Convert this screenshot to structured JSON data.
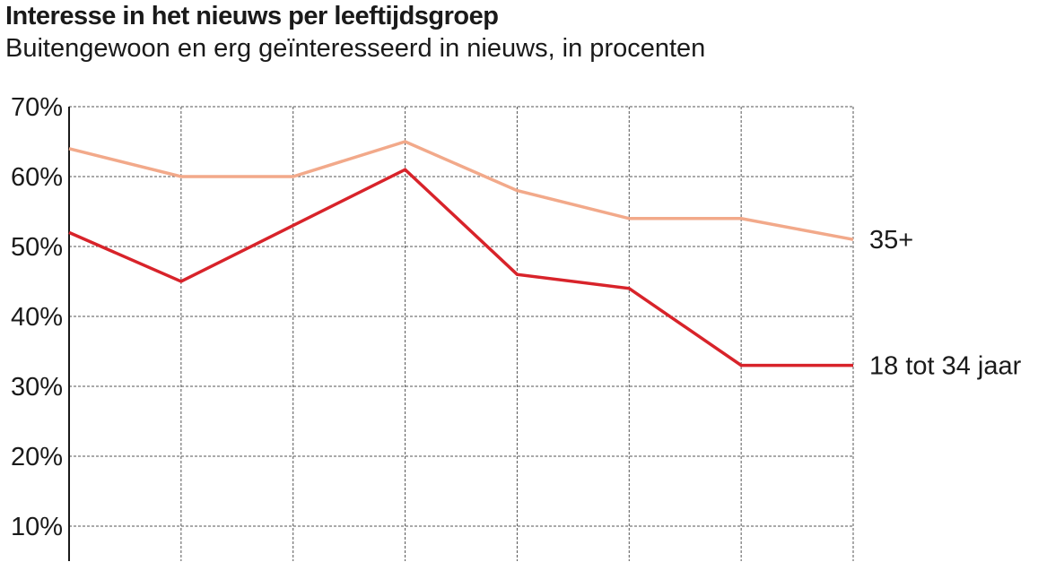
{
  "chart_data": {
    "type": "line",
    "title": "Interesse in het nieuws per leeftijdsgroep",
    "subtitle": "Buitengewoon en erg geïnteresseerd in nieuws, in procenten",
    "xlabel": "",
    "ylabel": "",
    "y_ticks": [
      "70%",
      "60%",
      "50%",
      "40%",
      "30%",
      "20%",
      "10%"
    ],
    "y_tick_values": [
      70,
      60,
      50,
      40,
      30,
      20,
      10
    ],
    "ylim": [
      5,
      70
    ],
    "grid": true,
    "legend": "direct labels at right end of lines",
    "x_count": 8,
    "series": [
      {
        "name": "35+",
        "color": "#f2a98a",
        "values": [
          64,
          60,
          60,
          65,
          58,
          54,
          54,
          51
        ]
      },
      {
        "name": "18 tot 34 jaar",
        "color": "#d8232a",
        "values": [
          52,
          45,
          53,
          61,
          46,
          44,
          33,
          33
        ]
      }
    ]
  }
}
